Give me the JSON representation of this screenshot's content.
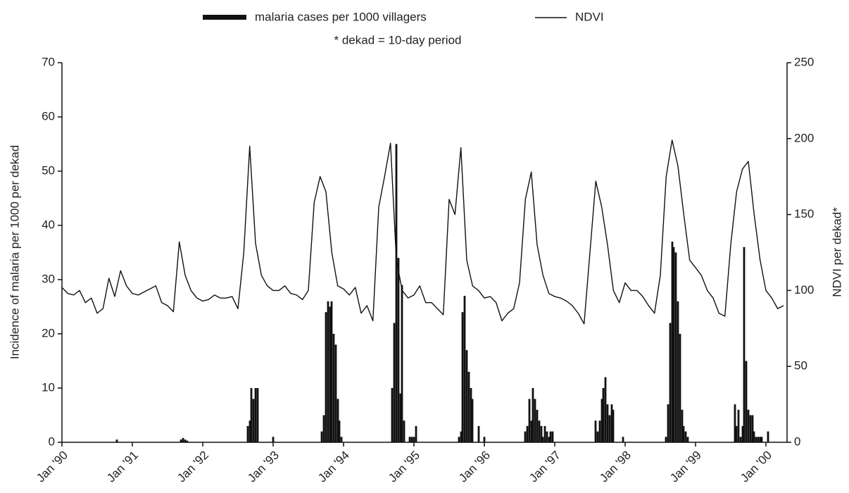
{
  "chart_data": {
    "type": "combo",
    "note": "* dekad = 10-day period",
    "y_label": "Incidence of malaria per 1000 per dekad",
    "y2_label": "NDVI per dekad*",
    "xlim": [
      1990,
      2000.3
    ],
    "xticks": [
      {
        "value": 1990,
        "label": "Jan '90"
      },
      {
        "value": 1991,
        "label": "Jan '91"
      },
      {
        "value": 1992,
        "label": "Jan '92"
      },
      {
        "value": 1993,
        "label": "Jan '93"
      },
      {
        "value": 1994,
        "label": "Jan '94"
      },
      {
        "value": 1995,
        "label": "Jan '95"
      },
      {
        "value": 1996,
        "label": "Jan '96"
      },
      {
        "value": 1997,
        "label": "Jan '97"
      },
      {
        "value": 1998,
        "label": "Jan '98"
      },
      {
        "value": 1999,
        "label": "Jan '99"
      },
      {
        "value": 2000,
        "label": "Jan '00"
      }
    ],
    "ylim": [
      0,
      70
    ],
    "yticks": [
      0,
      10,
      20,
      30,
      40,
      50,
      60,
      70
    ],
    "y2lim": [
      0,
      250
    ],
    "y2ticks": [
      0,
      50,
      100,
      150,
      200,
      250
    ],
    "series": [
      {
        "name": "malaria cases per 1000 villagers",
        "type": "bar",
        "axis": "y",
        "color": "#111111",
        "x": [
          1990.78,
          1991.69,
          1991.72,
          1991.75,
          1991.78,
          1992.64,
          1992.67,
          1992.69,
          1992.72,
          1992.75,
          1992.78,
          1993.0,
          1993.69,
          1993.72,
          1993.75,
          1993.78,
          1993.81,
          1993.83,
          1993.86,
          1993.89,
          1993.92,
          1993.94,
          1993.97,
          1994.69,
          1994.72,
          1994.75,
          1994.78,
          1994.81,
          1994.83,
          1994.86,
          1994.94,
          1994.97,
          1995.0,
          1995.03,
          1995.64,
          1995.67,
          1995.69,
          1995.72,
          1995.75,
          1995.78,
          1995.81,
          1995.83,
          1995.92,
          1996.0,
          1996.58,
          1996.61,
          1996.64,
          1996.67,
          1996.69,
          1996.72,
          1996.75,
          1996.78,
          1996.81,
          1996.83,
          1996.86,
          1996.89,
          1996.92,
          1996.94,
          1996.97,
          1997.58,
          1997.61,
          1997.64,
          1997.67,
          1997.69,
          1997.72,
          1997.75,
          1997.78,
          1997.81,
          1997.83,
          1997.97,
          1998.58,
          1998.61,
          1998.64,
          1998.67,
          1998.69,
          1998.72,
          1998.75,
          1998.78,
          1998.81,
          1998.83,
          1998.86,
          1998.89,
          1999.56,
          1999.58,
          1999.61,
          1999.64,
          1999.67,
          1999.69,
          1999.72,
          1999.75,
          1999.78,
          1999.81,
          1999.83,
          1999.86,
          1999.89,
          1999.92,
          1999.94,
          2000.03
        ],
        "values": [
          0.5,
          0.5,
          0.8,
          0.5,
          0.3,
          3,
          4,
          10,
          8,
          10,
          10,
          1,
          2,
          5,
          24,
          26,
          25,
          26,
          20,
          18,
          8,
          4,
          1,
          10,
          22,
          55,
          34,
          9,
          29,
          4,
          1,
          1,
          1,
          3,
          1,
          2,
          24,
          27,
          17,
          13,
          10,
          8,
          3,
          1,
          2,
          3,
          8,
          4,
          10,
          8,
          6,
          4,
          3,
          1,
          3,
          2,
          1,
          2,
          2,
          4,
          2,
          4,
          8,
          10,
          12,
          7,
          5,
          7,
          6,
          1,
          1,
          7,
          22,
          37,
          36,
          35,
          26,
          20,
          6,
          3,
          2,
          1,
          7,
          3,
          6,
          1,
          3,
          36,
          15,
          6,
          5,
          5,
          2,
          1,
          1,
          1,
          1,
          2
        ]
      },
      {
        "name": "NDVI",
        "type": "line",
        "axis": "y2",
        "color": "#111111",
        "x": [
          1990,
          1990.083,
          1990.167,
          1990.25,
          1990.333,
          1990.417,
          1990.5,
          1990.583,
          1990.667,
          1990.75,
          1990.833,
          1990.917,
          1991,
          1991.083,
          1991.167,
          1991.25,
          1991.333,
          1991.417,
          1991.5,
          1991.583,
          1991.667,
          1991.75,
          1991.833,
          1991.917,
          1992,
          1992.083,
          1992.167,
          1992.25,
          1992.333,
          1992.417,
          1992.5,
          1992.583,
          1992.667,
          1992.75,
          1992.833,
          1992.917,
          1993,
          1993.083,
          1993.167,
          1993.25,
          1993.333,
          1993.417,
          1993.5,
          1993.583,
          1993.667,
          1993.75,
          1993.833,
          1993.917,
          1994,
          1994.083,
          1994.167,
          1994.25,
          1994.333,
          1994.417,
          1994.5,
          1994.583,
          1994.667,
          1994.75,
          1994.833,
          1994.917,
          1995,
          1995.083,
          1995.167,
          1995.25,
          1995.333,
          1995.417,
          1995.5,
          1995.583,
          1995.667,
          1995.75,
          1995.833,
          1995.917,
          1996,
          1996.083,
          1996.167,
          1996.25,
          1996.333,
          1996.417,
          1996.5,
          1996.583,
          1996.667,
          1996.75,
          1996.833,
          1996.917,
          1997,
          1997.083,
          1997.167,
          1997.25,
          1997.333,
          1997.417,
          1997.5,
          1997.583,
          1997.667,
          1997.75,
          1997.833,
          1997.917,
          1998,
          1998.083,
          1998.167,
          1998.25,
          1998.333,
          1998.417,
          1998.5,
          1998.583,
          1998.667,
          1998.75,
          1998.833,
          1998.917,
          1999,
          1999.083,
          1999.167,
          1999.25,
          1999.333,
          1999.417,
          1999.5,
          1999.583,
          1999.667,
          1999.75,
          1999.833,
          1999.917,
          2000,
          2000.083,
          2000.167,
          2000.25
        ],
        "values": [
          102,
          98,
          97,
          100,
          92,
          95,
          85,
          88,
          108,
          96,
          113,
          103,
          98,
          97,
          99,
          101,
          103,
          92,
          90,
          86,
          132,
          110,
          100,
          95,
          93,
          94,
          97,
          95,
          95,
          96,
          88,
          125,
          195,
          131,
          110,
          103,
          100,
          100,
          103,
          98,
          97,
          94,
          100,
          158,
          175,
          165,
          125,
          103,
          101,
          97,
          102,
          85,
          90,
          80,
          155,
          175,
          197,
          120,
          100,
          95,
          97,
          103,
          92,
          92,
          88,
          84,
          160,
          150,
          194,
          120,
          103,
          100,
          95,
          96,
          92,
          80,
          85,
          88,
          105,
          160,
          178,
          130,
          110,
          98,
          96,
          95,
          93,
          90,
          85,
          78,
          125,
          172,
          155,
          130,
          100,
          92,
          105,
          100,
          100,
          96,
          90,
          85,
          110,
          175,
          199,
          182,
          150,
          120,
          115,
          110,
          100,
          95,
          85,
          83,
          130,
          165,
          180,
          185,
          150,
          120,
          100,
          95,
          88,
          90
        ]
      }
    ]
  }
}
